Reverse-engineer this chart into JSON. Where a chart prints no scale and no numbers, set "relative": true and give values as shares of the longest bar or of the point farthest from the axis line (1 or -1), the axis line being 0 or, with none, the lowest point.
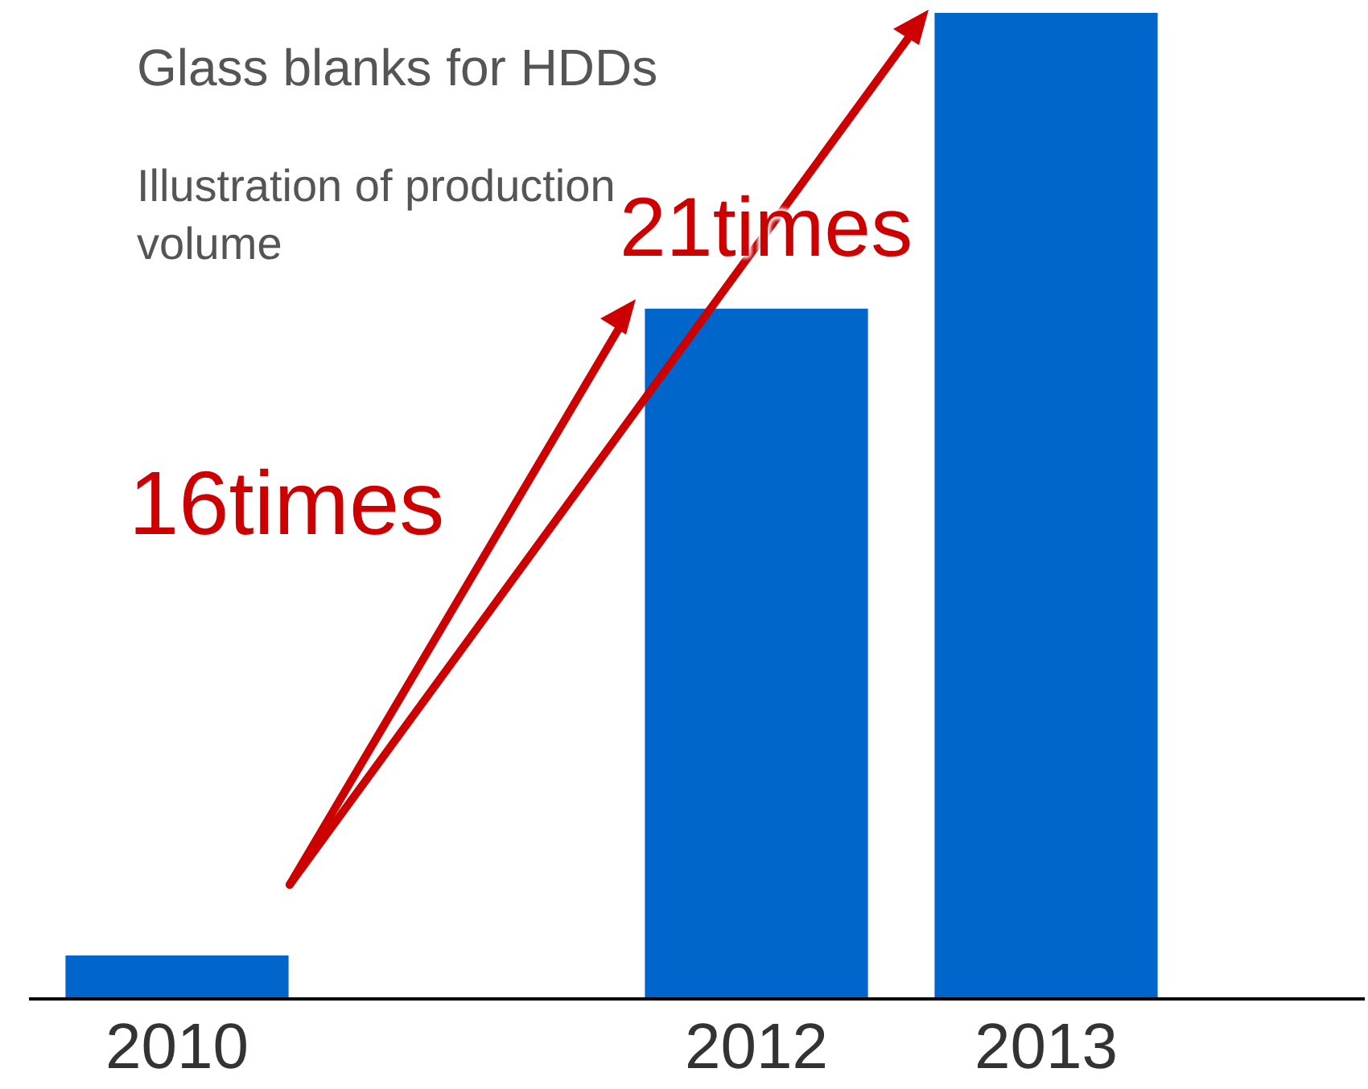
{
  "chart_data": {
    "type": "bar",
    "title": "Glass blanks for HDDs",
    "subtitle": "Illustration of production volume",
    "relative": true,
    "categories": [
      "2010",
      null,
      "2012",
      "2013"
    ],
    "values": [
      0.044,
      null,
      0.7,
      1
    ],
    "color": "#0066cc",
    "annotations": [
      "16times",
      "21times"
    ]
  }
}
